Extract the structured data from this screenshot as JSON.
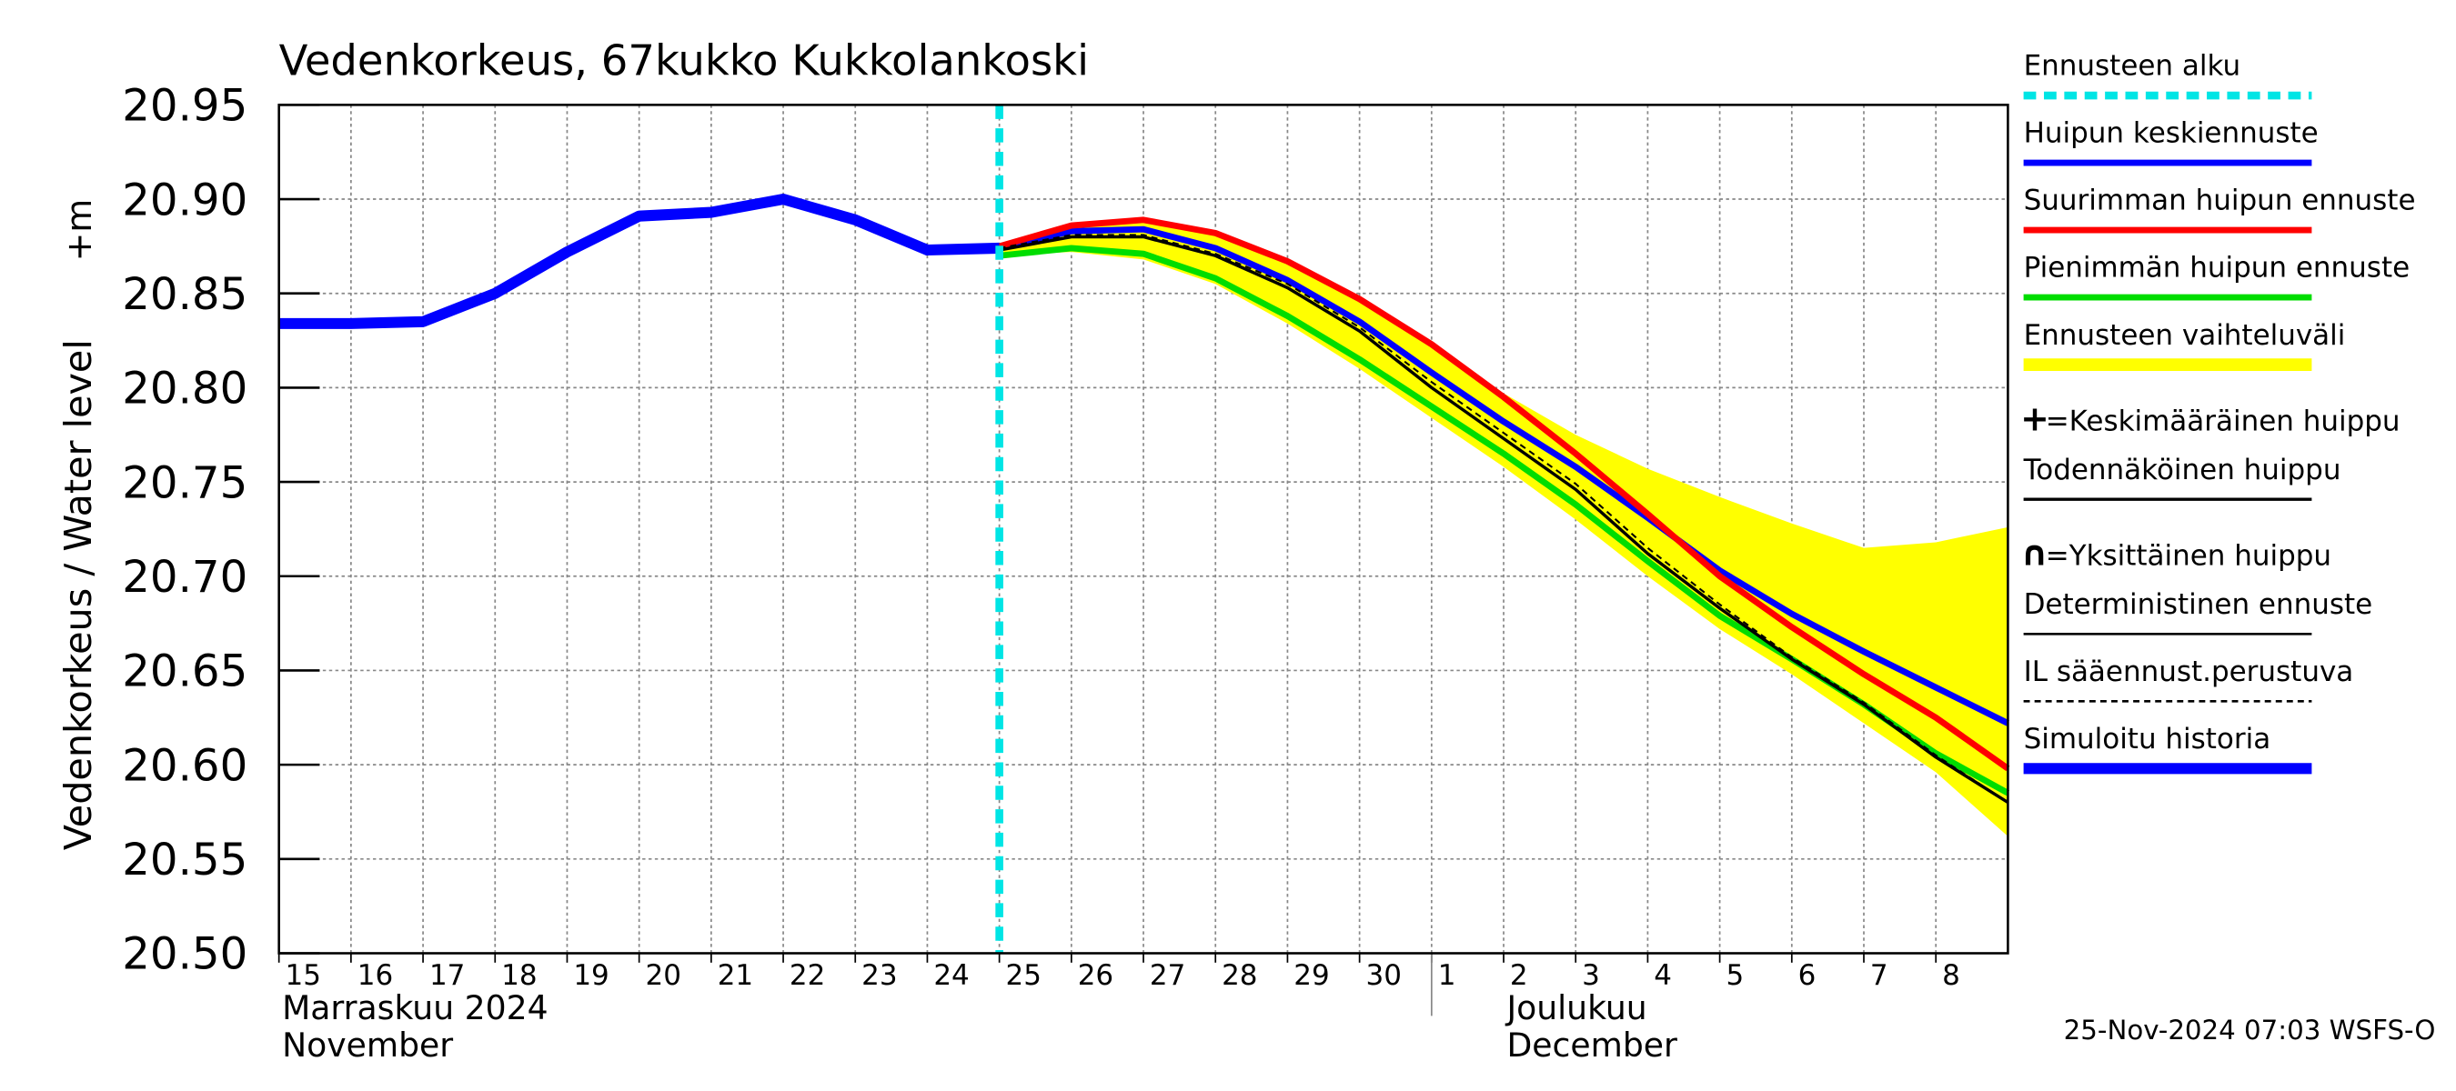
{
  "chart_data": {
    "type": "line",
    "title": "Vedenkorkeus, 67kukko Kukkolankoski",
    "y_label": "Vedenkorkeus / Water level",
    "y_unit": "+m",
    "timestamp": "25-Nov-2024 07:03 WSFS-O",
    "xlim": [
      0,
      24
    ],
    "xticks": [
      {
        "value": 0,
        "label": "15"
      },
      {
        "value": 1,
        "label": "16"
      },
      {
        "value": 2,
        "label": "17"
      },
      {
        "value": 3,
        "label": "18"
      },
      {
        "value": 4,
        "label": "19"
      },
      {
        "value": 5,
        "label": "20"
      },
      {
        "value": 6,
        "label": "21"
      },
      {
        "value": 7,
        "label": "22"
      },
      {
        "value": 8,
        "label": "23"
      },
      {
        "value": 9,
        "label": "24"
      },
      {
        "value": 10,
        "label": "25"
      },
      {
        "value": 11,
        "label": "26"
      },
      {
        "value": 12,
        "label": "27"
      },
      {
        "value": 13,
        "label": "28"
      },
      {
        "value": 14,
        "label": "29"
      },
      {
        "value": 15,
        "label": "30"
      },
      {
        "value": 16,
        "label": "1"
      },
      {
        "value": 17,
        "label": "2"
      },
      {
        "value": 18,
        "label": "3"
      },
      {
        "value": 19,
        "label": "4"
      },
      {
        "value": 20,
        "label": "5"
      },
      {
        "value": 21,
        "label": "6"
      },
      {
        "value": 22,
        "label": "7"
      },
      {
        "value": 23,
        "label": "8"
      }
    ],
    "x_groups": [
      {
        "start": 0,
        "label": "Marraskuu 2024",
        "label_en": "November"
      },
      {
        "start": 16,
        "label": "Joulukuu",
        "label_en": "December"
      }
    ],
    "ylim": [
      20.5,
      20.95
    ],
    "yticks": [
      {
        "value": 20.5,
        "label": "20.50"
      },
      {
        "value": 20.55,
        "label": "20.55"
      },
      {
        "value": 20.6,
        "label": "20.60"
      },
      {
        "value": 20.65,
        "label": "20.65"
      },
      {
        "value": 20.7,
        "label": "20.70"
      },
      {
        "value": 20.75,
        "label": "20.75"
      },
      {
        "value": 20.8,
        "label": "20.80"
      },
      {
        "value": 20.85,
        "label": "20.85"
      },
      {
        "value": 20.9,
        "label": "20.90"
      },
      {
        "value": 20.95,
        "label": "20.95"
      }
    ],
    "grid": true,
    "series": [
      {
        "name": "Ennusteen alku",
        "kind": "vline",
        "color": "#00e5e5",
        "dash": true,
        "x": [
          10
        ]
      },
      {
        "name": "Huipun keskiennuste",
        "kind": "line",
        "color": "#0000ff",
        "width": 4,
        "x": [
          10,
          11,
          12,
          13,
          14,
          15,
          16,
          17,
          18,
          19,
          20,
          21,
          22,
          23,
          24
        ],
        "values": [
          20.874,
          20.883,
          20.884,
          20.874,
          20.857,
          20.835,
          20.808,
          20.782,
          20.758,
          20.731,
          20.703,
          20.68,
          20.66,
          20.641,
          20.622
        ]
      },
      {
        "name": "Suurimman huipun ennuste",
        "kind": "line",
        "color": "#ff0000",
        "width": 4,
        "x": [
          10,
          11,
          12,
          13,
          14,
          15,
          16,
          17,
          18,
          19,
          20,
          21,
          22,
          23,
          24
        ],
        "values": [
          20.875,
          20.886,
          20.889,
          20.882,
          20.867,
          20.847,
          20.823,
          20.795,
          20.765,
          20.733,
          20.7,
          20.673,
          20.648,
          20.625,
          20.598
        ]
      },
      {
        "name": "Pienimmän huipun ennuste",
        "kind": "line",
        "color": "#00dd00",
        "width": 4,
        "x": [
          10,
          11,
          12,
          13,
          14,
          15,
          16,
          17,
          18,
          19,
          20,
          21,
          22,
          23,
          24
        ],
        "values": [
          20.87,
          20.874,
          20.871,
          20.858,
          20.838,
          20.815,
          20.79,
          20.765,
          20.738,
          20.708,
          20.679,
          20.656,
          20.632,
          20.606,
          20.585
        ]
      },
      {
        "name": "Ennusteen vaihteluväli",
        "kind": "band",
        "color": "#ffff00",
        "x": [
          10,
          11,
          12,
          13,
          14,
          15,
          16,
          17,
          18,
          19,
          20,
          21,
          22,
          23,
          24
        ],
        "values": [
          20.875,
          20.886,
          20.889,
          20.882,
          20.867,
          20.847,
          20.823,
          20.797,
          20.775,
          20.757,
          20.742,
          20.728,
          20.715,
          20.718,
          20.726
        ],
        "lower": [
          20.87,
          20.872,
          20.868,
          20.855,
          20.834,
          20.81,
          20.784,
          20.758,
          20.73,
          20.7,
          20.672,
          20.648,
          20.622,
          20.596,
          20.562
        ]
      },
      {
        "name": "=Keskimääräinen huippu",
        "kind": "symbol",
        "symbol": "+"
      },
      {
        "name": "Todennäköinen huippu",
        "kind": "line",
        "color": "#000000",
        "width": 2,
        "x": [
          10,
          11,
          12,
          13,
          14,
          15,
          16,
          17,
          18,
          19,
          20,
          21,
          22,
          23,
          24
        ],
        "values": [
          20.873,
          20.88,
          20.88,
          20.87,
          20.853,
          20.83,
          20.8,
          20.773,
          20.746,
          20.712,
          20.683,
          20.656,
          20.632,
          20.604,
          20.58
        ]
      },
      {
        "name": "=Yksittäinen huippu",
        "kind": "symbol",
        "symbol": "∩"
      },
      {
        "name": "Deterministinen ennuste",
        "kind": "legend",
        "color": "#000000",
        "width": 1
      },
      {
        "name": "IL sääennust.perustuva",
        "kind": "line",
        "color": "#000000",
        "width": 1.2,
        "dash": true,
        "x": [
          10,
          11,
          12,
          13,
          14,
          15,
          16,
          17,
          18,
          19,
          20,
          21,
          22,
          23,
          24
        ],
        "values": [
          20.874,
          20.881,
          20.881,
          20.871,
          20.855,
          20.832,
          20.803,
          20.776,
          20.749,
          20.715,
          20.685,
          20.657,
          20.633,
          20.605,
          20.58
        ]
      },
      {
        "name": "Simuloitu historia",
        "kind": "line",
        "color": "#0000ff",
        "width": 7,
        "x": [
          0,
          1,
          2,
          3,
          4,
          5,
          6,
          7,
          8,
          9,
          10
        ],
        "values": [
          20.834,
          20.834,
          20.835,
          20.85,
          20.872,
          20.891,
          20.893,
          20.9,
          20.889,
          20.873,
          20.874
        ]
      }
    ]
  }
}
